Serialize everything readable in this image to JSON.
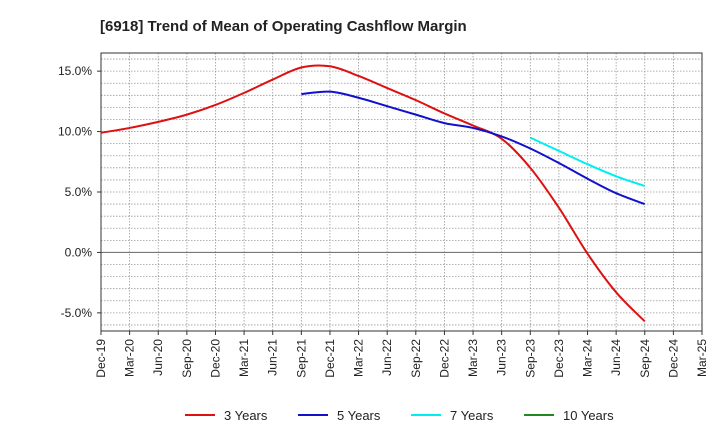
{
  "chart_data": {
    "type": "line",
    "title": "[6918]  Trend of Mean of Operating Cashflow Margin",
    "xlabel": "",
    "ylabel": "",
    "x": [
      "Dec-19",
      "Mar-20",
      "Jun-20",
      "Sep-20",
      "Dec-20",
      "Mar-21",
      "Jun-21",
      "Sep-21",
      "Dec-21",
      "Mar-22",
      "Jun-22",
      "Sep-22",
      "Dec-22",
      "Mar-23",
      "Jun-23",
      "Sep-23",
      "Dec-23",
      "Mar-24",
      "Jun-24",
      "Sep-24",
      "Dec-24",
      "Mar-25"
    ],
    "ylim": [
      -6.5,
      16.5
    ],
    "yticks": [
      15,
      10,
      5,
      0,
      -5
    ],
    "ytick_labels": [
      "15.0%",
      "10.0%",
      "5.0%",
      "0.0%",
      "-5.0%"
    ],
    "grid": true,
    "legend_position": "bottom",
    "series": [
      {
        "name": "3 Years",
        "color": "#dd1111",
        "values": [
          9.9,
          10.3,
          10.8,
          11.4,
          12.2,
          13.2,
          14.3,
          15.3,
          15.4,
          14.6,
          13.6,
          12.6,
          11.5,
          10.5,
          9.4,
          7.0,
          3.7,
          -0.1,
          -3.3,
          -5.7,
          null,
          null
        ]
      },
      {
        "name": "5 Years",
        "color": "#1111cc",
        "values": [
          null,
          null,
          null,
          null,
          null,
          null,
          null,
          13.1,
          13.3,
          12.8,
          12.1,
          11.4,
          10.7,
          10.3,
          9.6,
          8.6,
          7.4,
          6.1,
          4.9,
          4.0,
          null,
          null
        ]
      },
      {
        "name": "7 Years",
        "color": "#00eeee",
        "values": [
          null,
          null,
          null,
          null,
          null,
          null,
          null,
          null,
          null,
          null,
          null,
          null,
          null,
          null,
          null,
          9.5,
          8.4,
          7.3,
          6.3,
          5.5,
          null,
          null
        ]
      },
      {
        "name": "10 Years",
        "color": "#228822",
        "values": [
          null,
          null,
          null,
          null,
          null,
          null,
          null,
          null,
          null,
          null,
          null,
          null,
          null,
          null,
          null,
          null,
          null,
          null,
          null,
          null,
          null,
          null
        ]
      }
    ]
  }
}
